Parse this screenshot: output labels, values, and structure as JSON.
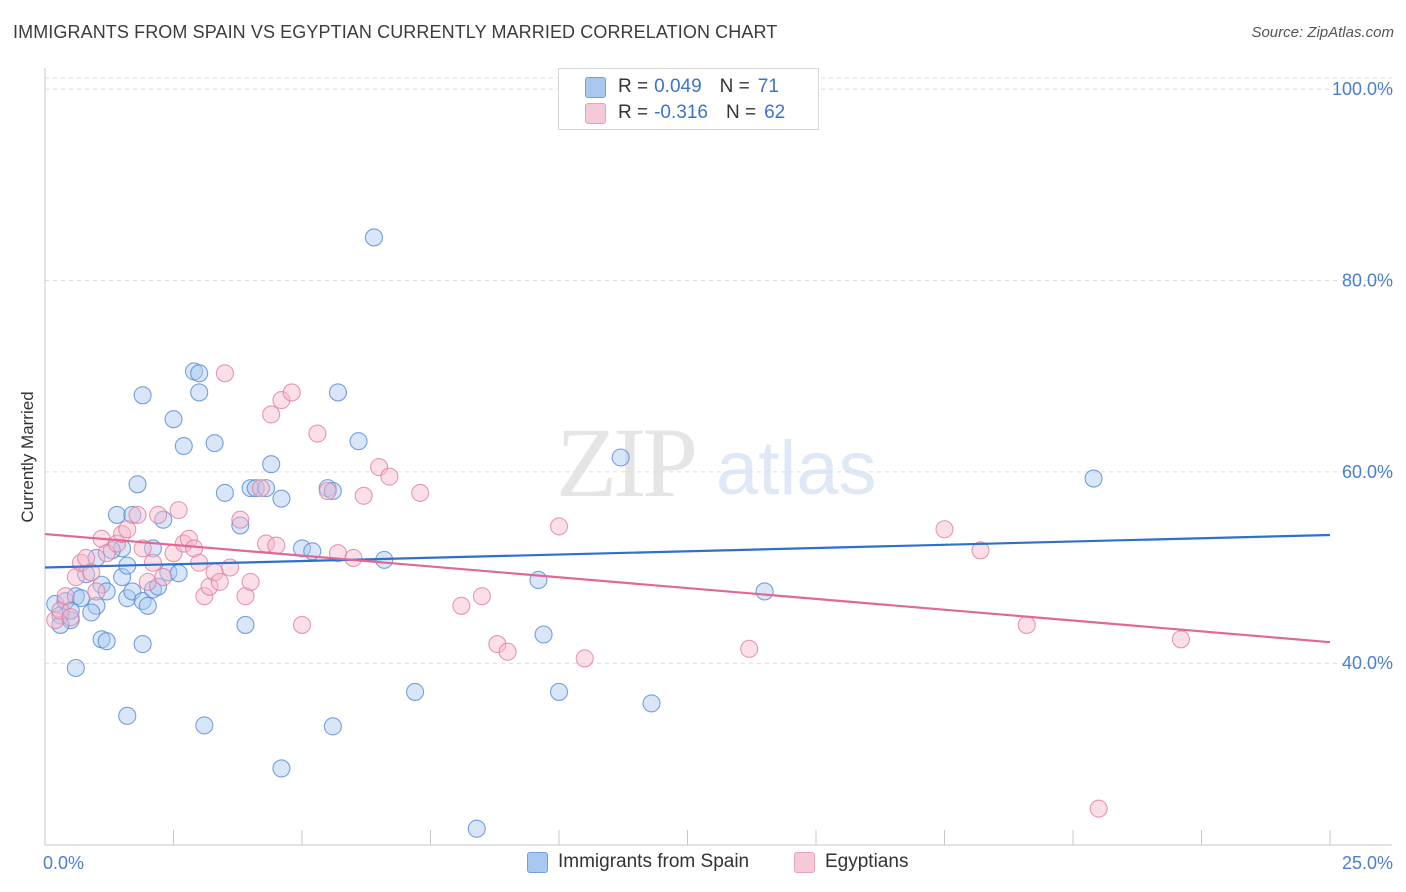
{
  "header": {
    "title": "IMMIGRANTS FROM SPAIN VS EGYPTIAN CURRENTLY MARRIED CORRELATION CHART",
    "source": "Source: ZipAtlas.com"
  },
  "watermark": {
    "zip": "ZIP",
    "atlas": "atlas"
  },
  "legend": {
    "rows": [
      {
        "r_label": "R =",
        "r_value": "0.049",
        "n_label": "N =",
        "n_value": "71",
        "color": "#a9c8f0"
      },
      {
        "r_label": "R =",
        "r_value": "-0.316",
        "n_label": "N =",
        "n_value": "62",
        "color": "#f6b8cb"
      }
    ]
  },
  "bottom_legend": [
    {
      "label": "Immigrants from Spain",
      "color": "#a9c8f0"
    },
    {
      "label": "Egyptians",
      "color": "#f6b8cb"
    }
  ],
  "chart_data": {
    "type": "scatter",
    "ylabel": "Currently Married",
    "xlim": [
      0,
      25
    ],
    "ylim": [
      21,
      102
    ],
    "x_tick_labels": [
      {
        "value": 0,
        "label": "0.0%"
      },
      {
        "value": 25,
        "label": "25.0%"
      }
    ],
    "y_tick_labels": [
      {
        "value": 100,
        "label": "100.0%"
      },
      {
        "value": 80,
        "label": "80.0%"
      },
      {
        "value": 60,
        "label": "60.0%"
      },
      {
        "value": 40,
        "label": "40.0%"
      }
    ],
    "grid": "horizontal-dashed",
    "series": [
      {
        "name": "Immigrants from Spain",
        "color": "#4a84d6",
        "fill": "#a9c8f0",
        "trend": {
          "x": [
            0,
            25
          ],
          "y": [
            50.0,
            53.4
          ]
        },
        "points": [
          [
            0.2,
            46.2
          ],
          [
            0.3,
            45.0
          ],
          [
            0.4,
            46.5
          ],
          [
            0.5,
            44.5
          ],
          [
            0.6,
            47.0
          ],
          [
            0.7,
            46.8
          ],
          [
            0.5,
            45.5
          ],
          [
            0.3,
            44.0
          ],
          [
            1.0,
            46.0
          ],
          [
            0.9,
            45.3
          ],
          [
            1.1,
            48.2
          ],
          [
            1.2,
            47.5
          ],
          [
            1.5,
            49.0
          ],
          [
            1.6,
            50.2
          ],
          [
            1.0,
            51.0
          ],
          [
            0.8,
            49.3
          ],
          [
            1.4,
            55.5
          ],
          [
            1.7,
            55.5
          ],
          [
            1.5,
            52.0
          ],
          [
            1.6,
            46.8
          ],
          [
            1.7,
            47.5
          ],
          [
            1.9,
            46.5
          ],
          [
            2.1,
            47.7
          ],
          [
            2.2,
            48.0
          ],
          [
            2.0,
            46.0
          ],
          [
            2.1,
            52.0
          ],
          [
            2.3,
            55.0
          ],
          [
            1.1,
            42.5
          ],
          [
            1.2,
            42.3
          ],
          [
            1.9,
            42.0
          ],
          [
            0.6,
            39.5
          ],
          [
            1.6,
            34.5
          ],
          [
            1.9,
            68.0
          ],
          [
            2.5,
            65.5
          ],
          [
            2.7,
            62.7
          ],
          [
            2.9,
            70.5
          ],
          [
            3.0,
            70.3
          ],
          [
            3.0,
            68.3
          ],
          [
            3.3,
            63.0
          ],
          [
            3.5,
            57.8
          ],
          [
            2.4,
            49.5
          ],
          [
            3.8,
            54.4
          ],
          [
            4.0,
            58.3
          ],
          [
            4.1,
            58.3
          ],
          [
            4.4,
            60.8
          ],
          [
            4.3,
            58.3
          ],
          [
            3.9,
            44.0
          ],
          [
            3.1,
            33.5
          ],
          [
            4.6,
            57.2
          ],
          [
            5.0,
            52.0
          ],
          [
            5.2,
            51.7
          ],
          [
            5.5,
            58.3
          ],
          [
            5.6,
            58.0
          ],
          [
            5.7,
            68.3
          ],
          [
            6.1,
            63.2
          ],
          [
            6.6,
            50.8
          ],
          [
            6.4,
            84.5
          ],
          [
            7.2,
            37.0
          ],
          [
            4.6,
            29.0
          ],
          [
            5.6,
            33.4
          ],
          [
            8.4,
            22.7
          ],
          [
            9.6,
            48.7
          ],
          [
            9.7,
            43.0
          ],
          [
            10.0,
            37.0
          ],
          [
            11.2,
            61.5
          ],
          [
            11.8,
            35.8
          ],
          [
            14.0,
            47.5
          ],
          [
            20.4,
            59.3
          ],
          [
            1.8,
            58.7
          ],
          [
            2.6,
            49.4
          ],
          [
            1.3,
            51.8
          ]
        ]
      },
      {
        "name": "Egyptians",
        "color": "#e07898",
        "fill": "#f6b8cb",
        "trend": {
          "x": [
            0,
            25
          ],
          "y": [
            53.5,
            42.2
          ]
        },
        "points": [
          [
            0.2,
            44.5
          ],
          [
            0.3,
            45.5
          ],
          [
            0.4,
            47.0
          ],
          [
            0.5,
            44.8
          ],
          [
            0.6,
            49.0
          ],
          [
            0.7,
            50.5
          ],
          [
            0.8,
            51.0
          ],
          [
            0.9,
            49.5
          ],
          [
            1.0,
            47.5
          ],
          [
            1.1,
            53.0
          ],
          [
            1.2,
            51.5
          ],
          [
            1.4,
            52.5
          ],
          [
            1.5,
            53.5
          ],
          [
            1.6,
            54.0
          ],
          [
            1.8,
            55.5
          ],
          [
            1.9,
            52.0
          ],
          [
            2.0,
            48.5
          ],
          [
            2.1,
            50.5
          ],
          [
            2.2,
            55.5
          ],
          [
            2.3,
            49.0
          ],
          [
            2.5,
            51.5
          ],
          [
            2.6,
            56.0
          ],
          [
            2.7,
            52.5
          ],
          [
            2.8,
            53.0
          ],
          [
            2.9,
            52.0
          ],
          [
            3.0,
            50.5
          ],
          [
            3.1,
            47.0
          ],
          [
            3.2,
            48.0
          ],
          [
            3.3,
            49.5
          ],
          [
            3.4,
            48.5
          ],
          [
            3.5,
            70.3
          ],
          [
            3.6,
            50.0
          ],
          [
            3.8,
            55.0
          ],
          [
            3.9,
            47.0
          ],
          [
            4.0,
            48.5
          ],
          [
            4.2,
            58.3
          ],
          [
            4.3,
            52.5
          ],
          [
            4.4,
            66.0
          ],
          [
            4.5,
            52.3
          ],
          [
            4.6,
            67.5
          ],
          [
            4.8,
            68.3
          ],
          [
            5.0,
            44.0
          ],
          [
            5.3,
            64.0
          ],
          [
            5.5,
            58.0
          ],
          [
            5.7,
            51.5
          ],
          [
            6.0,
            51.0
          ],
          [
            6.2,
            57.5
          ],
          [
            6.5,
            60.5
          ],
          [
            6.7,
            59.5
          ],
          [
            7.3,
            57.8
          ],
          [
            8.1,
            46.0
          ],
          [
            8.5,
            47.0
          ],
          [
            8.8,
            42.0
          ],
          [
            9.0,
            41.2
          ],
          [
            10.0,
            54.3
          ],
          [
            10.5,
            40.5
          ],
          [
            13.7,
            41.5
          ],
          [
            17.5,
            54.0
          ],
          [
            18.2,
            51.8
          ],
          [
            19.1,
            44.0
          ],
          [
            20.5,
            24.8
          ],
          [
            22.1,
            42.5
          ]
        ]
      }
    ]
  }
}
